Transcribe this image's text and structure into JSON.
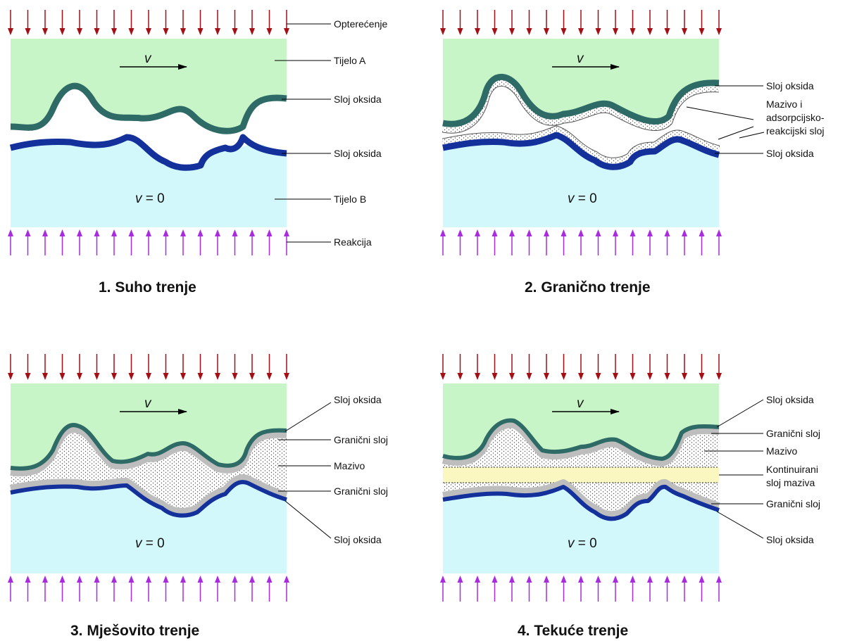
{
  "colors": {
    "body_a": "#c8f5c8",
    "body_b": "#d2f8fc",
    "oxide_a": "#2f6b66",
    "oxide_b": "#13309b",
    "load_arrow": "#a40f16",
    "reaction_arrow": "#a82be0",
    "boundary_layer": "#bdbdbd",
    "continuous_film": "#faf8c0"
  },
  "panels": [
    {
      "caption": "1. Suho trenje",
      "velocity_symbol": "v",
      "ground_velocity": "v",
      "ground_velocity_value": "= 0",
      "labels": [
        "Opterećenje",
        "Tijelo A",
        "Sloj oksida",
        "Sloj oksida",
        "Tijelo B",
        "Reakcija"
      ]
    },
    {
      "caption": "2. Granično trenje",
      "velocity_symbol": "v",
      "ground_velocity": "v",
      "ground_velocity_value": "= 0",
      "labels": [
        "Sloj oksida",
        "Mazivo i",
        "adsorpcijsko-",
        "reakcijski sloj",
        "Sloj oksida"
      ]
    },
    {
      "caption": "3. Mješovito trenje",
      "velocity_symbol": "v",
      "ground_velocity": "v",
      "ground_velocity_value": "= 0",
      "labels": [
        "Sloj oksida",
        "Granični sloj",
        "Mazivo",
        "Granični sloj",
        "Sloj oksida"
      ]
    },
    {
      "caption": "4. Tekuće trenje",
      "velocity_symbol": "v",
      "ground_velocity": "v",
      "ground_velocity_value": "= 0",
      "labels": [
        "Sloj oksida",
        "Granični sloj",
        "Mazivo",
        "Kontinuirani",
        "sloj maziva",
        "Granični sloj",
        "Sloj oksida"
      ]
    }
  ]
}
